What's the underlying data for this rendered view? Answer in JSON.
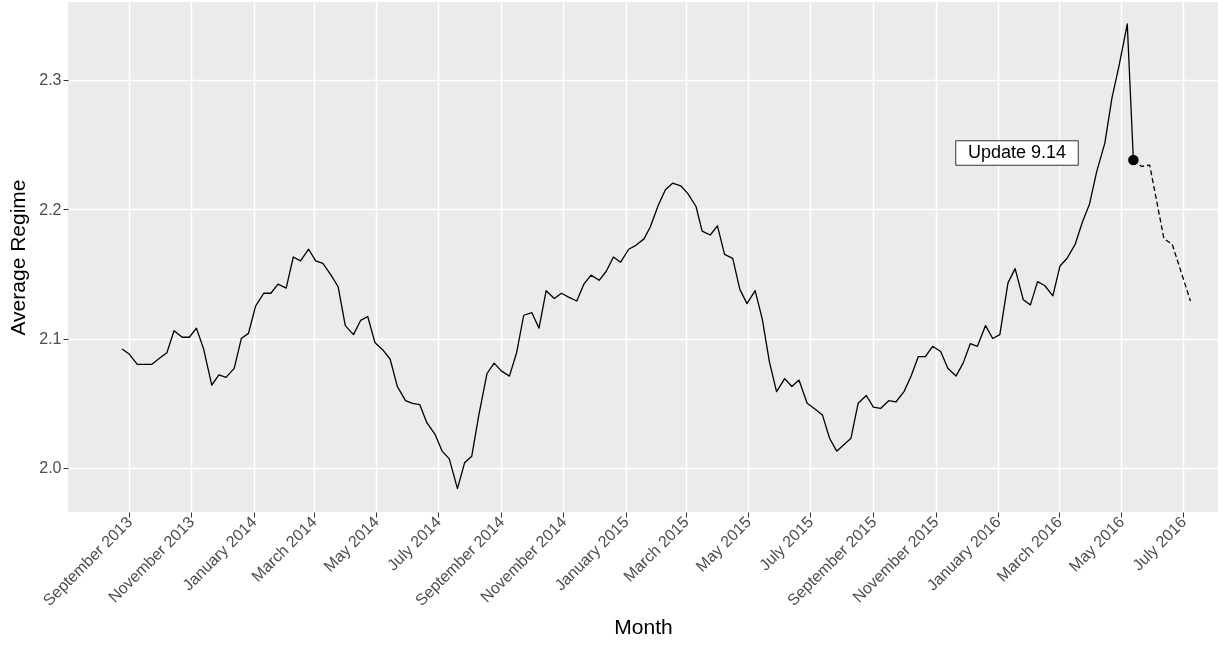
{
  "chart_data": {
    "type": "line",
    "xlabel": "Month",
    "ylabel": "Average Regime",
    "xlim": [
      "2013-07-03",
      "2016-08-04"
    ],
    "ylim": [
      1.966,
      2.36
    ],
    "xticks": [
      {
        "value": "2013-09-01",
        "label": "September 2013"
      },
      {
        "value": "2013-11-01",
        "label": "November 2013"
      },
      {
        "value": "2014-01-01",
        "label": "January 2014"
      },
      {
        "value": "2014-03-01",
        "label": "March 2014"
      },
      {
        "value": "2014-05-01",
        "label": "May 2014"
      },
      {
        "value": "2014-07-01",
        "label": "July 2014"
      },
      {
        "value": "2014-09-01",
        "label": "September 2014"
      },
      {
        "value": "2014-11-01",
        "label": "November 2014"
      },
      {
        "value": "2015-01-01",
        "label": "January 2015"
      },
      {
        "value": "2015-03-01",
        "label": "March 2015"
      },
      {
        "value": "2015-05-01",
        "label": "May 2015"
      },
      {
        "value": "2015-07-01",
        "label": "July 2015"
      },
      {
        "value": "2015-09-01",
        "label": "September 2015"
      },
      {
        "value": "2015-11-01",
        "label": "November 2015"
      },
      {
        "value": "2016-01-01",
        "label": "January 2016"
      },
      {
        "value": "2016-03-01",
        "label": "March 2016"
      },
      {
        "value": "2016-05-01",
        "label": "May 2016"
      },
      {
        "value": "2016-07-01",
        "label": "July 2016"
      }
    ],
    "yticks": [
      {
        "value": 2,
        "label": "2.0"
      },
      2.1,
      2.2,
      2.3
    ],
    "grid": true,
    "legend": false,
    "annotations": [
      "Update 9.14"
    ],
    "series": [
      {
        "type": "line",
        "color": "#000000",
        "line_style": "solid",
        "x": [
          "2013-08-25",
          "2013-09-01",
          "2013-09-09",
          "2013-09-16",
          "2013-09-23",
          "2013-10-01",
          "2013-10-08",
          "2013-10-15",
          "2013-10-23",
          "2013-10-30",
          "2013-11-06",
          "2013-11-13",
          "2013-11-21",
          "2013-11-28",
          "2013-12-05",
          "2013-12-13",
          "2013-12-20",
          "2013-12-27",
          "2014-01-03",
          "2014-01-11",
          "2014-01-18",
          "2014-01-25",
          "2014-02-02",
          "2014-02-09",
          "2014-02-16",
          "2014-02-24",
          "2014-03-03",
          "2014-03-10",
          "2014-03-18",
          "2014-03-25",
          "2014-04-01",
          "2014-04-09",
          "2014-04-16",
          "2014-04-23",
          "2014-04-30",
          "2014-05-08",
          "2014-05-15",
          "2014-05-22",
          "2014-05-30",
          "2014-06-06",
          "2014-06-13",
          "2014-06-20",
          "2014-06-28",
          "2014-07-05",
          "2014-07-12",
          "2014-07-20",
          "2014-07-27",
          "2014-08-03",
          "2014-08-10",
          "2014-08-18",
          "2014-08-25",
          "2014-09-01",
          "2014-09-09",
          "2014-09-16",
          "2014-09-23",
          "2014-10-01",
          "2014-10-08",
          "2014-10-15",
          "2014-10-23",
          "2014-10-30",
          "2014-11-06",
          "2014-11-14",
          "2014-11-21",
          "2014-11-28",
          "2014-12-06",
          "2014-12-13",
          "2014-12-20",
          "2014-12-27",
          "2015-01-04",
          "2015-01-11",
          "2015-01-19",
          "2015-01-25",
          "2015-02-02",
          "2015-02-09",
          "2015-02-16",
          "2015-02-24",
          "2015-03-03",
          "2015-03-11",
          "2015-03-17",
          "2015-03-25",
          "2015-04-01",
          "2015-04-08",
          "2015-04-16",
          "2015-04-23",
          "2015-04-30",
          "2015-05-08",
          "2015-05-15",
          "2015-05-22",
          "2015-05-29",
          "2015-06-06",
          "2015-06-13",
          "2015-06-20",
          "2015-06-28",
          "2015-07-05",
          "2015-07-13",
          "2015-07-20",
          "2015-07-27",
          "2015-08-03",
          "2015-08-10",
          "2015-08-17",
          "2015-08-25",
          "2015-09-01",
          "2015-09-08",
          "2015-09-16",
          "2015-09-23",
          "2015-10-01",
          "2015-10-08",
          "2015-10-15",
          "2015-10-22",
          "2015-10-29",
          "2015-11-06",
          "2015-11-13",
          "2015-11-21",
          "2015-11-28",
          "2015-12-05",
          "2015-12-12",
          "2015-12-20",
          "2015-12-27",
          "2016-01-03",
          "2016-01-11",
          "2016-01-18",
          "2016-01-26",
          "2016-02-02",
          "2016-02-09",
          "2016-02-16",
          "2016-02-24",
          "2016-03-02",
          "2016-03-09",
          "2016-03-17",
          "2016-03-24",
          "2016-03-31",
          "2016-04-07",
          "2016-04-15",
          "2016-04-22",
          "2016-04-29",
          "2016-05-07",
          "2016-05-13"
        ],
        "values": [
          2.092,
          2.088,
          2.08,
          2.08,
          2.08,
          2.085,
          2.089,
          2.106,
          2.101,
          2.101,
          2.108,
          2.092,
          2.064,
          2.072,
          2.07,
          2.077,
          2.1,
          2.104,
          2.125,
          2.135,
          2.135,
          2.142,
          2.139,
          2.163,
          2.16,
          2.169,
          2.16,
          2.158,
          2.149,
          2.14,
          2.11,
          2.103,
          2.114,
          2.117,
          2.097,
          2.091,
          2.084,
          2.063,
          2.052,
          2.05,
          2.049,
          2.035,
          2.026,
          2.013,
          2.007,
          1.984,
          2.004,
          2.009,
          2.041,
          2.073,
          2.081,
          2.075,
          2.071,
          2.089,
          2.118,
          2.12,
          2.108,
          2.137,
          2.131,
          2.135,
          2.132,
          2.129,
          2.142,
          2.149,
          2.145,
          2.152,
          2.163,
          2.159,
          2.169,
          2.172,
          2.177,
          2.186,
          2.203,
          2.215,
          2.22,
          2.218,
          2.212,
          2.202,
          2.183,
          2.18,
          2.187,
          2.165,
          2.162,
          2.138,
          2.127,
          2.137,
          2.115,
          2.082,
          2.059,
          2.069,
          2.063,
          2.068,
          2.05,
          2.046,
          2.041,
          2.023,
          2.013,
          2.018,
          2.023,
          2.05,
          2.056,
          2.047,
          2.046,
          2.052,
          2.051,
          2.059,
          2.071,
          2.086,
          2.086,
          2.094,
          2.09,
          2.077,
          2.071,
          2.081,
          2.096,
          2.094,
          2.11,
          2.1,
          2.103,
          2.143,
          2.154,
          2.13,
          2.126,
          2.144,
          2.141,
          2.133,
          2.156,
          2.162,
          2.173,
          2.19,
          2.204,
          2.229,
          2.251,
          2.286,
          2.311,
          2.343,
          2.238
        ]
      },
      {
        "type": "line",
        "color": "#000000",
        "line_style": "dashed",
        "x": [
          "2016-05-13",
          "2016-05-21",
          "2016-05-29",
          "2016-06-12",
          "2016-06-20",
          "2016-07-08"
        ],
        "values": [
          2.238,
          2.233,
          2.234,
          2.177,
          2.173,
          2.129
        ]
      },
      {
        "type": "scatter",
        "color": "#000000",
        "marker": "circle",
        "x": [
          "2016-05-13"
        ],
        "values": [
          2.238
        ]
      }
    ]
  }
}
